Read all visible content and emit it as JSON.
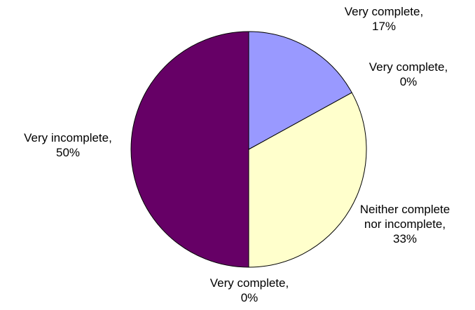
{
  "chart_data": {
    "type": "pie",
    "title": "",
    "series": [
      {
        "name": "",
        "values": [
          17,
          0,
          33,
          0,
          50
        ]
      }
    ],
    "categories": [
      "Very complete",
      "Very complete",
      "Neither complete nor incomplete",
      "Very complete",
      "Very incomplete"
    ],
    "slices": [
      {
        "label_lines": [
          "Very complete,",
          "17%"
        ],
        "value": 17,
        "color": "#9999ff"
      },
      {
        "label_lines": [
          "Very complete,",
          "0%"
        ],
        "value": 0,
        "color": "#993366"
      },
      {
        "label_lines": [
          "Neither complete",
          "nor incomplete,",
          "33%"
        ],
        "value": 33,
        "color": "#ffffcc"
      },
      {
        "label_lines": [
          "Very complete,",
          "0%"
        ],
        "value": 0,
        "color": "#ccffff"
      },
      {
        "label_lines": [
          "Very incomplete,",
          "50%"
        ],
        "value": 50,
        "color": "#660066"
      }
    ],
    "start_angle": "12 o'clock",
    "direction": "clockwise",
    "legend": "none"
  }
}
